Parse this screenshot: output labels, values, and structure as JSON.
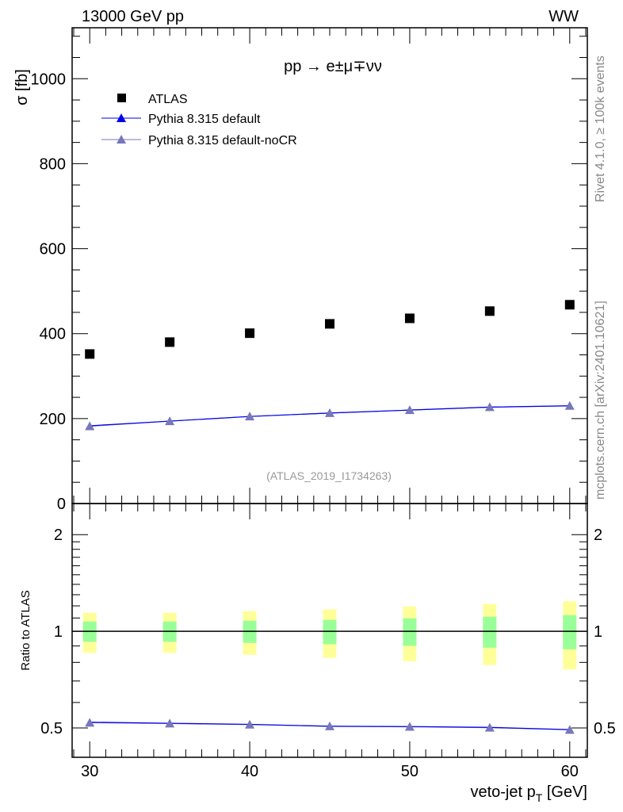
{
  "header": {
    "left": "13000 GeV pp",
    "right": "WW"
  },
  "side_texts": {
    "rivet": "Rivet 4.1.0, ≥ 100k events",
    "mcplots": "mcplots.cern.ch [arXiv:2401.10621]"
  },
  "analysis_label": "(ATLAS_2019_I1734263)",
  "colors": {
    "atlas": "#000000",
    "default": "#0000ee",
    "nocr": "#7777bb",
    "green": "#99ff99",
    "yellow": "#ffff99"
  },
  "chart_data": [
    {
      "type": "scatter",
      "title": "pp → e±μ∓νν",
      "xlabel": "veto-jet p_T [GeV]",
      "ylabel": "σ [fb]",
      "xlim": [
        28.9,
        61.1
      ],
      "ylim": [
        0,
        1120
      ],
      "yticks": [
        0,
        200,
        400,
        600,
        800,
        1000
      ],
      "legend_position": "top-left",
      "x": [
        30,
        35,
        40,
        45,
        50,
        55,
        60
      ],
      "series": [
        {
          "name": "ATLAS",
          "marker": "square",
          "values": [
            352,
            380,
            401,
            423,
            436,
            453,
            468
          ]
        },
        {
          "name": "Pythia 8.315 default",
          "marker": "triangle",
          "values": [
            183,
            194,
            205,
            213,
            220,
            227,
            230
          ]
        },
        {
          "name": "Pythia 8.315 default-noCR",
          "marker": "triangle",
          "values": [
            182,
            194,
            205,
            213,
            220,
            227,
            230
          ]
        }
      ]
    },
    {
      "type": "line",
      "ylabel": "Ratio to ATLAS",
      "xlabel": "veto-jet p_T [GeV]",
      "yscale": "log",
      "xlim": [
        28.9,
        61.1
      ],
      "ylim": [
        0.405,
        2.5
      ],
      "yticks": [
        0.5,
        1,
        2
      ],
      "yticklabels": [
        "0.5",
        "1",
        "2"
      ],
      "xticks": [
        30,
        40,
        50,
        60
      ],
      "x": [
        30,
        35,
        40,
        45,
        50,
        55,
        60
      ],
      "bands": {
        "green_up": [
          1.073,
          1.073,
          1.079,
          1.085,
          1.097,
          1.11,
          1.122
        ],
        "green_down": [
          0.927,
          0.927,
          0.92,
          0.911,
          0.901,
          0.889,
          0.879
        ],
        "yellow_up": [
          1.142,
          1.142,
          1.155,
          1.17,
          1.195,
          1.216,
          1.241
        ],
        "yellow_down": [
          0.856,
          0.856,
          0.845,
          0.826,
          0.807,
          0.785,
          0.76
        ]
      },
      "series": [
        {
          "name": "Pythia 8.315 default",
          "values": [
            0.521,
            0.517,
            0.513,
            0.506,
            0.505,
            0.502,
            0.494
          ]
        },
        {
          "name": "Pythia 8.315 default-noCR",
          "values": [
            0.519,
            0.516,
            0.512,
            0.506,
            0.504,
            0.501,
            0.493
          ]
        }
      ]
    }
  ]
}
